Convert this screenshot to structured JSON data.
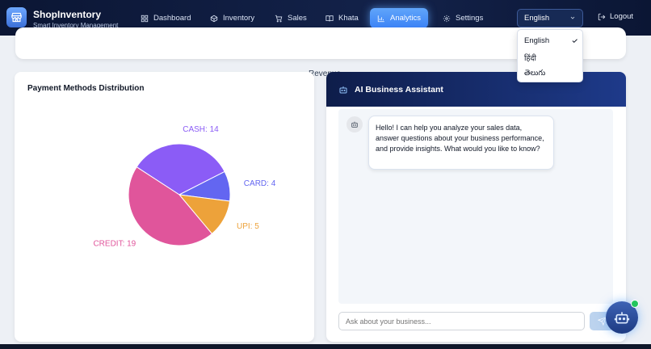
{
  "brand": {
    "title": "ShopInventory",
    "subtitle": "Smart Inventory Management"
  },
  "nav": {
    "dashboard": "Dashboard",
    "inventory": "Inventory",
    "sales": "Sales",
    "khata": "Khata",
    "analytics": "Analytics",
    "settings": "Settings",
    "active": "Analytics"
  },
  "language": {
    "selected": "English",
    "options": [
      "English",
      "हिंदी",
      "తెలుగు"
    ]
  },
  "logout_label": "Logout",
  "revenue_legend": "Revenue",
  "payment_card": {
    "title": "Payment Methods Distribution"
  },
  "chart_data": {
    "type": "pie",
    "title": "Payment Methods Distribution",
    "labels": [
      "CASH: 14",
      "CARD: 4",
      "UPI: 5",
      "CREDIT: 19"
    ],
    "categories": [
      "CASH",
      "CARD",
      "UPI",
      "CREDIT"
    ],
    "values": [
      14,
      4,
      5,
      19
    ],
    "colors": [
      "#8b5cf6",
      "#6366f1",
      "#eda23a",
      "#e0559b"
    ]
  },
  "assistant": {
    "title": "AI Business Assistant",
    "greeting": "Hello! I can help you analyze your sales data, answer questions about your business performance, and provide insights. What would you like to know?",
    "input_placeholder": "Ask about your business..."
  },
  "colors": {
    "accent": "#3b82f6",
    "nav_bg": "#0b1634",
    "status_online": "#22c55e"
  }
}
